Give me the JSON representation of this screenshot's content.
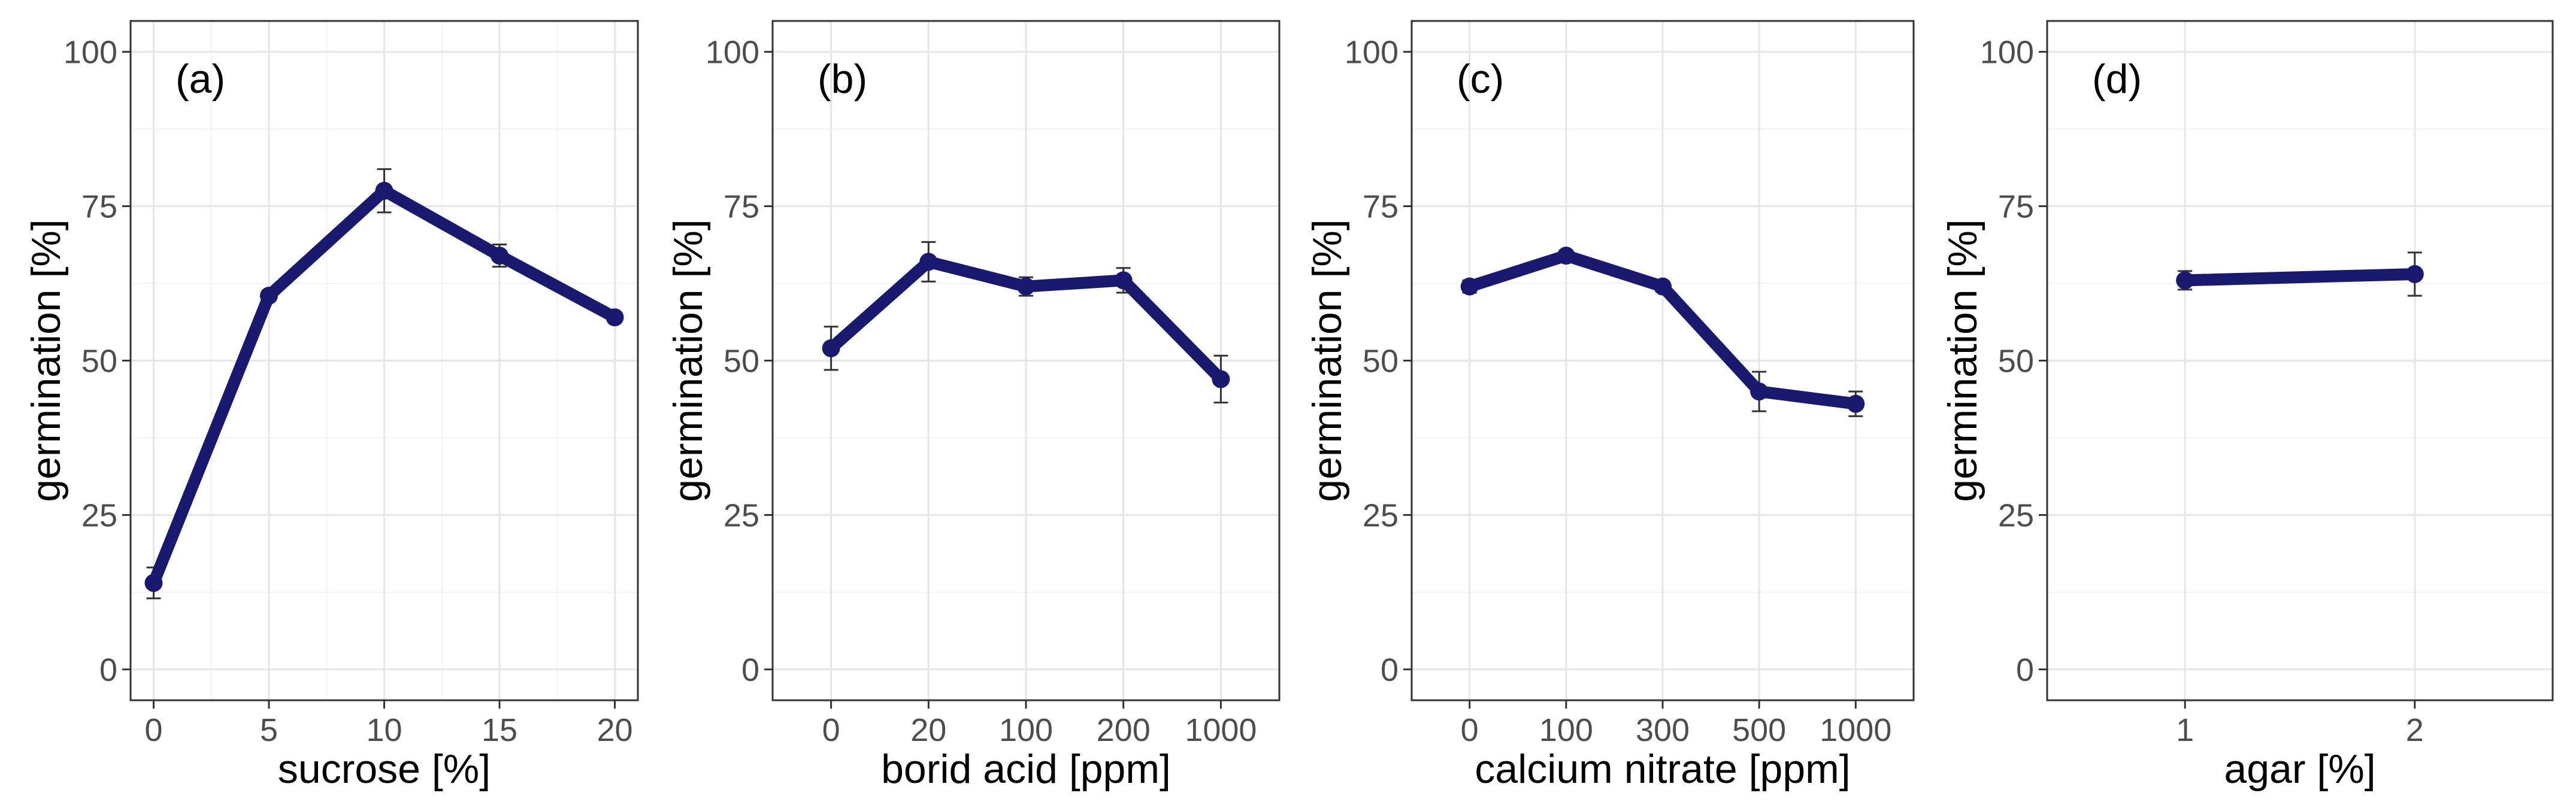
{
  "chart_data": [
    {
      "type": "line",
      "panel_label": "(a)",
      "categories": [
        "0",
        "5",
        "10",
        "15",
        "20"
      ],
      "x": [
        0,
        5,
        10,
        15,
        20
      ],
      "xlim": [
        -1,
        21
      ],
      "values": [
        14,
        60.5,
        77.5,
        67,
        57
      ],
      "errors": [
        2.5,
        0.8,
        3.5,
        1.8,
        0.8
      ],
      "xlabel": "sucrose [%]",
      "ylabel": "germination [%]",
      "ylim": [
        -5,
        105
      ],
      "yticks": [
        0,
        25,
        50,
        75,
        100
      ],
      "ytick_labels": [
        "0",
        "25",
        "50",
        "75",
        "100"
      ]
    },
    {
      "type": "line",
      "panel_label": "(b)",
      "categories": [
        "0",
        "20",
        "100",
        "200",
        "1000"
      ],
      "x": [
        1,
        2,
        3,
        4,
        5
      ],
      "xlim": [
        0.4,
        5.6
      ],
      "values": [
        52,
        66,
        62,
        63,
        47
      ],
      "errors": [
        3.5,
        3.2,
        1.5,
        2,
        3.8
      ],
      "xlabel": "borid acid [ppm]",
      "ylabel": "germination [%]",
      "ylim": [
        -5,
        105
      ],
      "yticks": [
        0,
        25,
        50,
        75,
        100
      ],
      "ytick_labels": [
        "0",
        "25",
        "50",
        "75",
        "100"
      ]
    },
    {
      "type": "line",
      "panel_label": "(c)",
      "categories": [
        "0",
        "100",
        "300",
        "500",
        "1000"
      ],
      "x": [
        1,
        2,
        3,
        4,
        5
      ],
      "xlim": [
        0.4,
        5.6
      ],
      "values": [
        62,
        67,
        62,
        45,
        43
      ],
      "errors": [
        1,
        0.8,
        0.8,
        3.2,
        2
      ],
      "xlabel": "calcium nitrate [ppm]",
      "ylabel": "germination [%]",
      "ylim": [
        -5,
        105
      ],
      "yticks": [
        0,
        25,
        50,
        75,
        100
      ],
      "ytick_labels": [
        "0",
        "25",
        "50",
        "75",
        "100"
      ]
    },
    {
      "type": "line",
      "panel_label": "(d)",
      "categories": [
        "1",
        "2"
      ],
      "x": [
        1,
        2
      ],
      "xlim": [
        0.4,
        2.6
      ],
      "values": [
        63,
        64
      ],
      "errors": [
        1.5,
        3.5
      ],
      "xlabel": "agar [%]",
      "ylabel": "germination [%]",
      "ylim": [
        -5,
        105
      ],
      "yticks": [
        0,
        25,
        50,
        75,
        100
      ],
      "ytick_labels": [
        "0",
        "25",
        "50",
        "75",
        "100"
      ]
    }
  ],
  "colors": {
    "series": "#191970",
    "errorbar": "#333333",
    "grid_major": "#e6e6e6",
    "grid_minor": "#f2f2f2",
    "tick_label": "#4d4d4d"
  }
}
